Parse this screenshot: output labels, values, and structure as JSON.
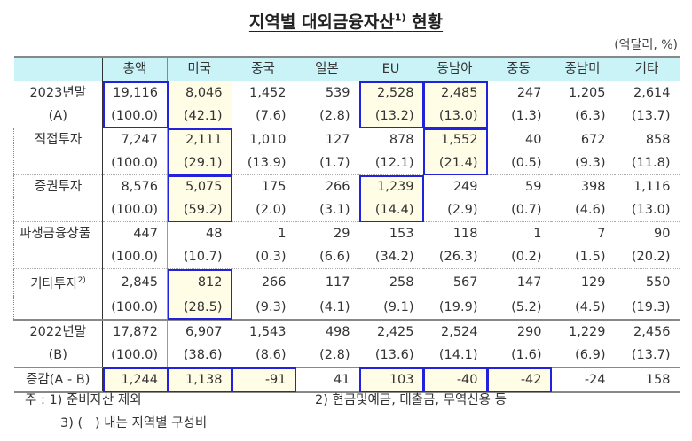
{
  "title": "지역별 대외금융자산",
  "title_sup": "1)",
  "title_suffix": "현황",
  "unit": "(억달러, %)",
  "columns": [
    "",
    "총액",
    "미국",
    "중국",
    "일본",
    "EU",
    "동남아",
    "중동",
    "중남미",
    "기타"
  ],
  "rows": [
    {
      "label": "2023년말",
      "values": [
        "19,116",
        "8,046",
        "1,452",
        "539",
        "2,528",
        "2,485",
        "247",
        "1,205",
        "2,614"
      ]
    },
    {
      "label": "(A)",
      "values": [
        "(100.0)",
        "(42.1)",
        "(7.6)",
        "(2.8)",
        "(13.2)",
        "(13.0)",
        "(1.3)",
        "(6.3)",
        "(13.7)"
      ]
    },
    {
      "label": "직접투자",
      "values": [
        "7,247",
        "2,111",
        "1,010",
        "127",
        "878",
        "1,552",
        "40",
        "672",
        "858"
      ]
    },
    {
      "label": "",
      "values": [
        "(100.0)",
        "(29.1)",
        "(13.9)",
        "(1.7)",
        "(12.1)",
        "(21.4)",
        "(0.5)",
        "(9.3)",
        "(11.8)"
      ]
    },
    {
      "label": "증권투자",
      "values": [
        "8,576",
        "5,075",
        "175",
        "266",
        "1,239",
        "249",
        "59",
        "398",
        "1,116"
      ]
    },
    {
      "label": "",
      "values": [
        "(100.0)",
        "(59.2)",
        "(2.0)",
        "(3.1)",
        "(14.4)",
        "(2.9)",
        "(0.7)",
        "(4.6)",
        "(13.0)"
      ]
    },
    {
      "label": "파생금융상품",
      "values": [
        "447",
        "48",
        "1",
        "29",
        "153",
        "118",
        "1",
        "7",
        "90"
      ]
    },
    {
      "label": "",
      "values": [
        "(100.0)",
        "(10.7)",
        "(0.3)",
        "(6.6)",
        "(34.2)",
        "(26.3)",
        "(0.2)",
        "(1.5)",
        "(20.2)"
      ]
    },
    {
      "label": "기타투자",
      "label_sup": "2)",
      "values": [
        "2,845",
        "812",
        "266",
        "117",
        "258",
        "567",
        "147",
        "129",
        "550"
      ]
    },
    {
      "label": "",
      "values": [
        "(100.0)",
        "(28.5)",
        "(9.3)",
        "(4.1)",
        "(9.1)",
        "(19.9)",
        "(5.2)",
        "(4.5)",
        "(19.3)"
      ]
    },
    {
      "label": "2022년말",
      "values": [
        "17,872",
        "6,907",
        "1,543",
        "498",
        "2,425",
        "2,524",
        "290",
        "1,229",
        "2,456"
      ]
    },
    {
      "label": "(B)",
      "values": [
        "(100.0)",
        "(38.6)",
        "(8.6)",
        "(2.8)",
        "(13.6)",
        "(14.1)",
        "(1.6)",
        "(6.9)",
        "(13.7)"
      ]
    },
    {
      "label": "증감(A - B)",
      "values": [
        "1,244",
        "1,138",
        "-91",
        "41",
        "103",
        "-40",
        "-42",
        "-24",
        "158"
      ]
    }
  ],
  "notes": {
    "prefix": "주 : 1) 준비자산 제외",
    "note2": "2) 현금및예금, 대출금, 무역신용 등",
    "note3": "3) (   ) 내는 지역별 구성비"
  },
  "colors": {
    "header_bg": "#c9f3f7",
    "highlight_bg": "#fffde6",
    "highlight_border": "#2222dd"
  }
}
